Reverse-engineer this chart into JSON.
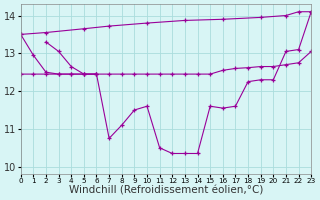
{
  "background_color": "#d8f5f5",
  "grid_color": "#aadddd",
  "line_color": "#990099",
  "xlim": [
    0,
    23
  ],
  "ylim": [
    9.8,
    14.3
  ],
  "xlabel": "Windchill (Refroidissement éolien,°C)",
  "xlabel_fontsize": 7.5,
  "yticks": [
    10,
    11,
    12,
    13,
    14
  ],
  "xtick_labels": [
    "0",
    "1",
    "2",
    "3",
    "4",
    "5",
    "6",
    "7",
    "8",
    "9",
    "10",
    "11",
    "12",
    "13",
    "14",
    "15",
    "16",
    "17",
    "18",
    "19",
    "20",
    "21",
    "22",
    "23"
  ],
  "curveA_x": [
    0,
    2,
    5,
    7,
    10,
    13,
    16,
    19,
    21,
    22,
    23
  ],
  "curveA_y": [
    13.5,
    13.55,
    13.65,
    13.72,
    13.8,
    13.87,
    13.9,
    13.95,
    14.0,
    14.1,
    14.1
  ],
  "curveB_x": [
    0,
    1,
    2,
    3,
    4,
    5,
    6,
    7,
    8,
    9,
    10,
    11,
    12,
    13,
    14,
    15,
    16,
    17,
    18,
    19,
    20,
    21,
    22,
    23
  ],
  "curveB_y": [
    12.45,
    12.45,
    12.45,
    12.45,
    12.45,
    12.45,
    12.45,
    12.45,
    12.45,
    12.45,
    12.45,
    12.45,
    12.45,
    12.45,
    12.45,
    12.45,
    12.55,
    12.6,
    12.62,
    12.65,
    12.65,
    12.7,
    12.75,
    13.05
  ],
  "curveC_x": [
    0,
    1,
    2,
    3,
    4,
    5,
    6,
    7,
    8,
    9,
    10,
    11,
    12,
    13,
    14,
    15,
    16,
    17,
    18,
    19,
    20,
    21,
    22,
    23
  ],
  "curveC_y": [
    13.5,
    12.95,
    12.5,
    12.45,
    12.45,
    12.45,
    12.45,
    10.75,
    11.1,
    11.5,
    11.6,
    10.5,
    10.35,
    10.35,
    10.35,
    11.6,
    11.55,
    11.6,
    12.25,
    12.3,
    12.3,
    13.05,
    13.1,
    14.1
  ],
  "curveD_x": [
    2,
    3,
    4,
    5,
    6
  ],
  "curveD_y": [
    13.3,
    13.05,
    12.65,
    12.45,
    12.45
  ]
}
